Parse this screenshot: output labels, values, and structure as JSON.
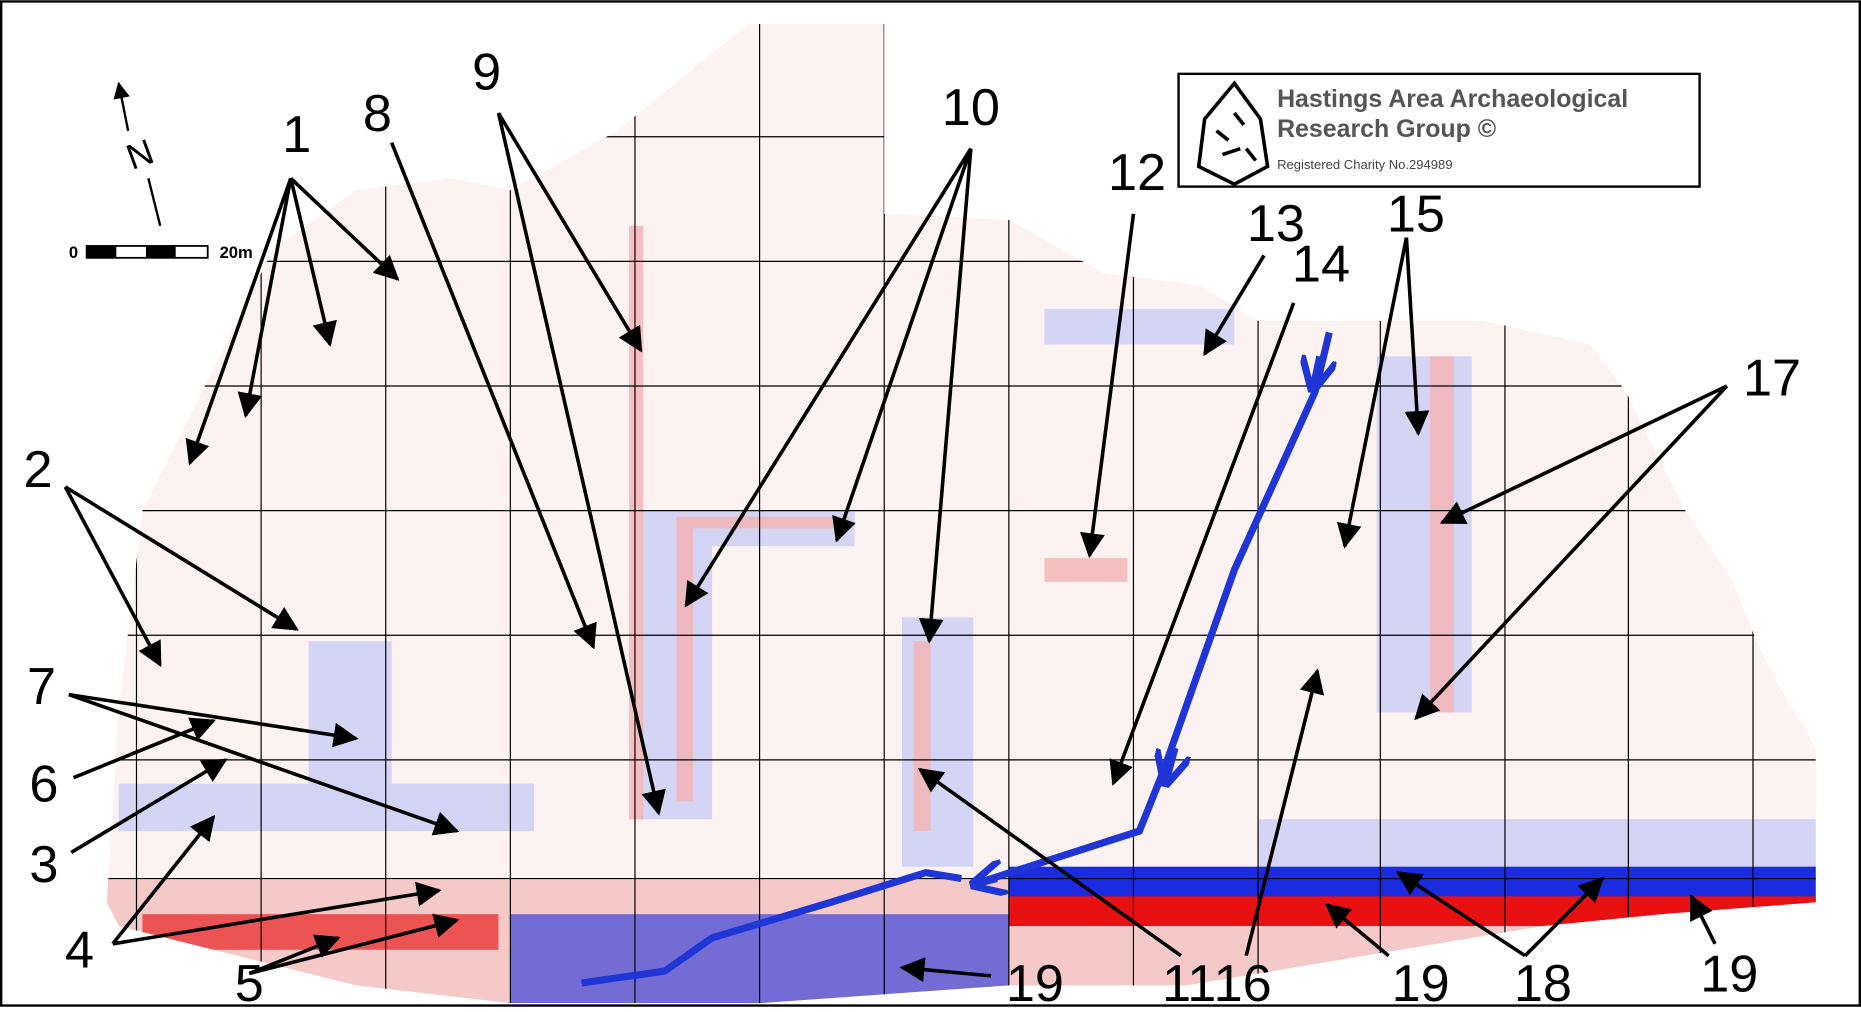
{
  "north": "N",
  "scale": {
    "start": "0",
    "end": "20m"
  },
  "logo": {
    "title_line1": "Hastings Area Archaeological",
    "title_line2": "Research Group ©",
    "charity": "Registered Charity No.294989"
  },
  "labels": [
    "1",
    "2",
    "7",
    "6",
    "3",
    "4",
    "5",
    "8",
    "9",
    "10",
    "11",
    "12",
    "13",
    "14",
    "15",
    "16",
    "17",
    "18",
    "19",
    "19",
    "19"
  ]
}
